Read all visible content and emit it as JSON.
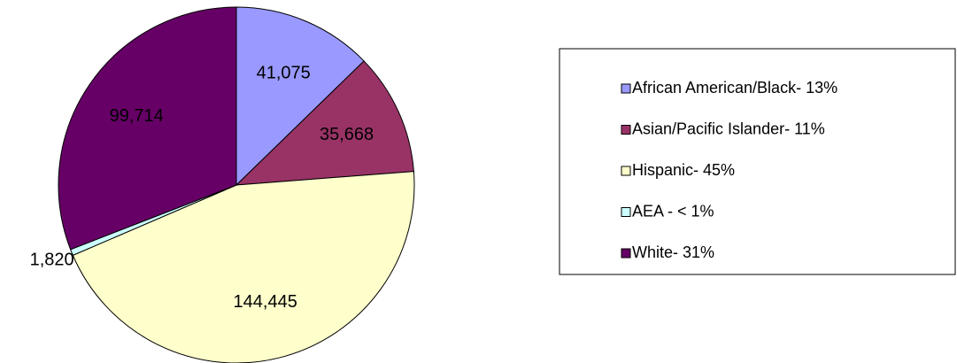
{
  "chart_data": {
    "type": "pie",
    "categories": [
      "African American/Black- 13%",
      "Asian/Pacific Islander- 11%",
      "Hispanic- 45%",
      "AEA - < 1%",
      "White- 31%"
    ],
    "values": [
      41075,
      35668,
      144445,
      1820,
      99714
    ],
    "value_labels": [
      "41,075",
      "35,668",
      "144,445",
      "1,820",
      "99,714"
    ],
    "colors": [
      "#9999ff",
      "#993366",
      "#ffffcc",
      "#ccffff",
      "#660066"
    ],
    "legend": "right"
  }
}
